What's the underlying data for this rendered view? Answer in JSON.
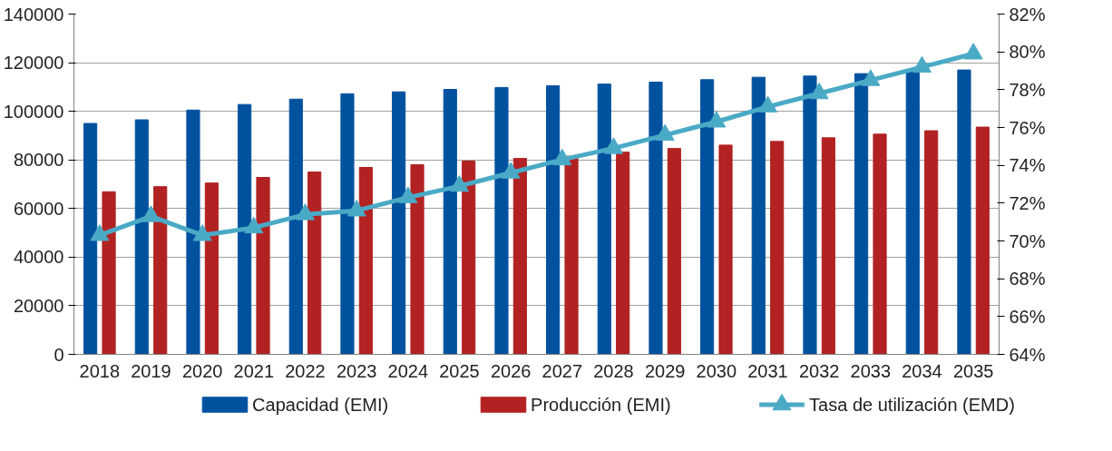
{
  "chart_data": {
    "type": "bar",
    "categories": [
      "2018",
      "2019",
      "2020",
      "2021",
      "2022",
      "2023",
      "2024",
      "2025",
      "2026",
      "2027",
      "2028",
      "2029",
      "2030",
      "2031",
      "2032",
      "2033",
      "2034",
      "2035"
    ],
    "series": [
      {
        "name": "Capacidad (EMI)",
        "color": "#00529f",
        "values": [
          95000,
          96500,
          100500,
          102800,
          105000,
          107200,
          108000,
          109000,
          109800,
          110500,
          111200,
          112000,
          113000,
          114000,
          114500,
          115500,
          116500,
          117000
        ]
      },
      {
        "name": "Producción (EMI)",
        "color": "#b22222",
        "values": [
          66900,
          69000,
          70500,
          72800,
          75000,
          76900,
          78000,
          79500,
          80600,
          81500,
          83200,
          84700,
          86100,
          87600,
          89100,
          90600,
          92000,
          93500
        ]
      },
      {
        "name": "Tasa de utilización (EMD)",
        "type": "line",
        "axis": "y2",
        "color": "#4aaac6",
        "marker": "triangle",
        "values": [
          70.3,
          71.3,
          70.3,
          70.7,
          71.4,
          71.6,
          72.3,
          72.9,
          73.6,
          74.3,
          74.9,
          75.6,
          76.3,
          77.1,
          77.8,
          78.5,
          79.2,
          79.9
        ]
      }
    ],
    "ylim": [
      0,
      140000
    ],
    "yticks": [
      0,
      20000,
      40000,
      60000,
      80000,
      100000,
      120000,
      140000
    ],
    "y2lim": [
      64,
      82
    ],
    "y2ticks": [
      {
        "value": 64,
        "label": "64%"
      },
      {
        "value": 66,
        "label": "66%"
      },
      {
        "value": 68,
        "label": "68%"
      },
      {
        "value": 70,
        "label": "70%"
      },
      {
        "value": 72,
        "label": "72%"
      },
      {
        "value": 74,
        "label": "74%"
      },
      {
        "value": 76,
        "label": "76%"
      },
      {
        "value": 78,
        "label": "78%"
      },
      {
        "value": 80,
        "label": "80%"
      },
      {
        "value": 82,
        "label": "82%"
      }
    ],
    "grid": "y",
    "legend": "bottom"
  }
}
